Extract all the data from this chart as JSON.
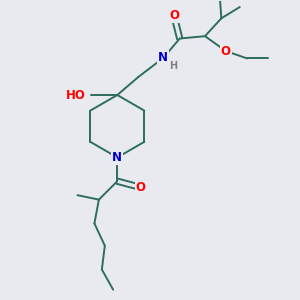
{
  "background_color": "#e8eaf0",
  "bond_color": "#2d6e5e",
  "atom_colors": {
    "O": "#ff0000",
    "N": "#0000cc",
    "H": "#808080"
  },
  "font_size_atoms": 8.5,
  "font_size_h": 7.0,
  "line_width": 1.4
}
